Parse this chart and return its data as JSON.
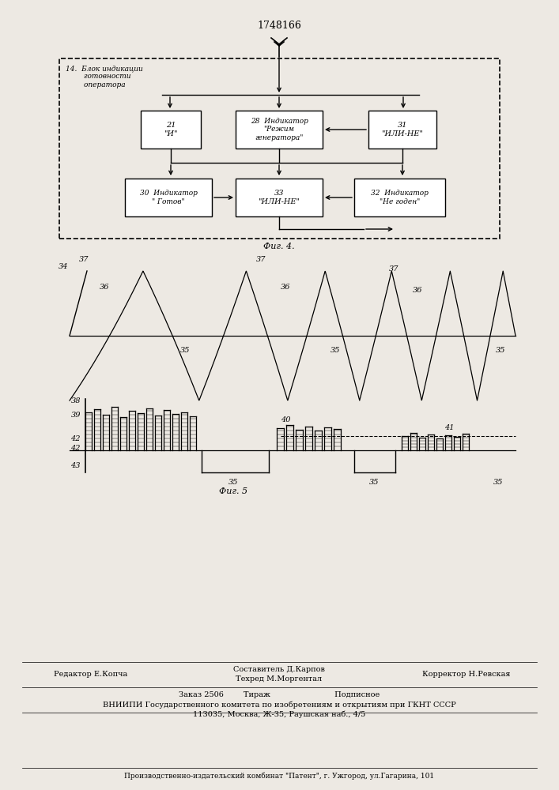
{
  "title": "1748166",
  "fig4_label": "Фиг. 4.",
  "fig5_label": "Фиг. 5",
  "bg_color": "#ede9e3",
  "bottom_text1": "Составитель Д.Карпов",
  "bottom_text2": "Техред М.Моргентал",
  "bottom_text3": "Редактор Е.Копча",
  "bottom_text4": "Корректор Н.Ревская",
  "bottom_text5": "Заказ 2506        Тираж                          Подписное",
  "bottom_text6": "ВНИИПИ Государственного комитета по изобретениям и открытиям при ГКНТ СССР",
  "bottom_text7": "113035, Москва, Ж-35, Раушская наб., 4/5",
  "bottom_text8": "Производственно-издательский комбинат \"Патент\", г. Ужгород, ул.Гагарина, 101"
}
